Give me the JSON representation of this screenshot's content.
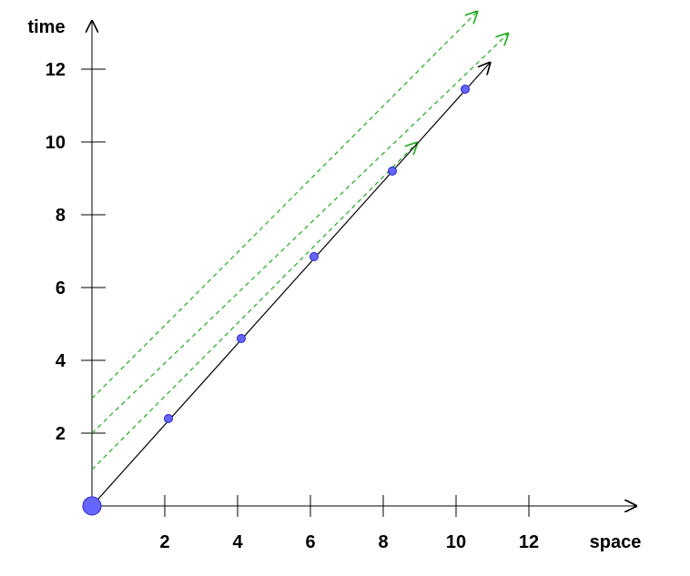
{
  "diagram": {
    "x_axis_label": "space",
    "y_axis_label": "time",
    "x_ticks": [
      2,
      4,
      6,
      8,
      10,
      12
    ],
    "y_ticks": [
      2,
      4,
      6,
      8,
      10,
      12
    ],
    "origin_marker": {
      "x": 0,
      "y": 0
    },
    "worldline": {
      "from": {
        "x": 0,
        "y": 0
      },
      "to": {
        "x": 10.95,
        "y": 12.2
      },
      "color": "#000000"
    },
    "events": [
      {
        "x": 2.1,
        "y": 2.4
      },
      {
        "x": 4.1,
        "y": 4.6
      },
      {
        "x": 6.1,
        "y": 6.85
      },
      {
        "x": 8.25,
        "y": 9.2
      },
      {
        "x": 10.25,
        "y": 11.45
      }
    ],
    "dashed_lines": [
      {
        "from": {
          "x": 0,
          "y": 1.0
        },
        "to": {
          "x": 8.95,
          "y": 10.0
        }
      },
      {
        "from": {
          "x": 0,
          "y": 2.0
        },
        "to": {
          "x": 11.45,
          "y": 13.0
        }
      },
      {
        "from": {
          "x": 0,
          "y": 2.95
        },
        "to": {
          "x": 10.6,
          "y": 13.6
        }
      }
    ],
    "colors": {
      "axis": "#000000",
      "event_fill": "#6666ff",
      "event_stroke": "#2222cc",
      "dashed": "#22aa22"
    }
  }
}
